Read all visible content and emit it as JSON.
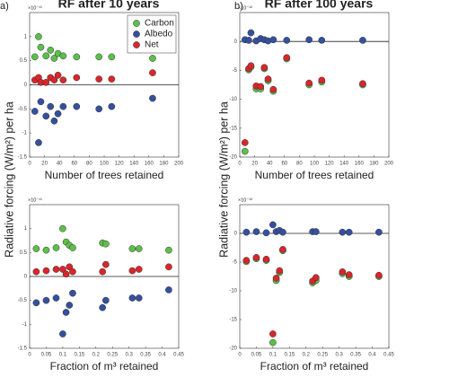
{
  "chart_data": [
    {
      "type": "scatter",
      "panel": "a)",
      "title": "RF  after 10 years",
      "exponent": "×10⁻¹¹",
      "ylabel": "Radiative forcing (W/m²) per ha",
      "xlabel": "Number of trees retained",
      "legend": "upper right",
      "x": [
        7,
        12,
        15,
        22,
        28,
        33,
        38,
        45,
        63,
        93,
        110,
        165
      ],
      "series": [
        {
          "name": "Carbon",
          "color": "#5cbf4a",
          "values": [
            0.58,
            1.0,
            0.78,
            0.6,
            0.72,
            0.55,
            0.65,
            0.6,
            0.58,
            0.58,
            0.58,
            0.55
          ]
        },
        {
          "name": "Albedo",
          "color": "#34509e",
          "values": [
            -0.55,
            -1.2,
            -0.35,
            -0.65,
            -0.45,
            -0.75,
            -0.6,
            -0.45,
            -0.45,
            -0.5,
            -0.45,
            -0.28
          ]
        },
        {
          "name": "Net",
          "color": "#d8262b",
          "values": [
            0.1,
            0.15,
            0.05,
            0.05,
            0.15,
            0.1,
            0.2,
            0.1,
            0.15,
            0.12,
            0.12,
            0.25
          ]
        }
      ],
      "xlim": [
        0,
        200
      ],
      "xticks": [
        0,
        20,
        40,
        60,
        80,
        100,
        120,
        140,
        160,
        180,
        200
      ],
      "ylim": [
        -1.5,
        1.5
      ],
      "yticks": [
        -1.5,
        -1,
        -0.5,
        0,
        0.5,
        1
      ],
      "hline": 0
    },
    {
      "type": "scatter",
      "panel": "b)",
      "title": "RF  after 100 years",
      "exponent": "×10⁻¹²",
      "ylabel": "Radiative forcing (W/m²) per ha",
      "xlabel": "Number of trees retained",
      "x": [
        7,
        12,
        15,
        22,
        28,
        33,
        38,
        45,
        63,
        93,
        110,
        165
      ],
      "series": [
        {
          "name": "Carbon",
          "color": "#5cbf4a",
          "values": [
            -19,
            -4.9,
            -4.4,
            -8.2,
            -8.2,
            -4.7,
            -6.8,
            -8.6,
            -3,
            -7.5,
            -7,
            -7.5
          ]
        },
        {
          "name": "Albedo",
          "color": "#34509e",
          "values": [
            0.3,
            0.2,
            1.5,
            0.1,
            0.5,
            0.3,
            0.1,
            0.3,
            0.2,
            0.3,
            0.2,
            0.2
          ]
        },
        {
          "name": "Net",
          "color": "#d8262b",
          "values": [
            -17.5,
            -4.7,
            -4.2,
            -7.7,
            -7.8,
            -4.5,
            -6.5,
            -8.3,
            -2.8,
            -7.2,
            -6.7,
            -7.3
          ]
        }
      ],
      "xlim": [
        0,
        200
      ],
      "xticks": [
        0,
        20,
        40,
        60,
        80,
        100,
        120,
        140,
        160,
        180,
        200
      ],
      "ylim": [
        -20,
        5
      ],
      "yticks": [
        -20,
        -15,
        -10,
        -5,
        0
      ],
      "hline": 0
    },
    {
      "type": "scatter",
      "exponent": "×10⁻¹¹",
      "xlabel": "Fraction of m³ retained",
      "x": [
        0.02,
        0.05,
        0.08,
        0.1,
        0.11,
        0.12,
        0.13,
        0.22,
        0.23,
        0.31,
        0.33,
        0.42
      ],
      "series": [
        {
          "name": "Carbon",
          "color": "#5cbf4a",
          "values": [
            0.58,
            0.55,
            0.6,
            1.0,
            0.72,
            0.65,
            0.6,
            0.7,
            0.68,
            0.58,
            0.58,
            0.55
          ]
        },
        {
          "name": "Albedo",
          "color": "#34509e",
          "values": [
            -0.55,
            -0.5,
            -0.45,
            -1.2,
            -0.75,
            -0.6,
            -0.35,
            -0.65,
            -0.5,
            -0.45,
            -0.45,
            -0.28
          ]
        },
        {
          "name": "Net",
          "color": "#d8262b",
          "values": [
            0.1,
            0.12,
            0.15,
            0.15,
            0.05,
            0.2,
            0.1,
            0.1,
            0.25,
            0.12,
            0.15,
            0.2
          ]
        }
      ],
      "xlim": [
        0,
        0.45
      ],
      "xticks": [
        0,
        0.05,
        0.1,
        0.15,
        0.2,
        0.25,
        0.3,
        0.35,
        0.4,
        0.45
      ],
      "ylim": [
        -1.5,
        1.5
      ],
      "yticks": [
        -1.5,
        -1,
        -0.5,
        0,
        0.5,
        1
      ],
      "hline": 0
    },
    {
      "type": "scatter",
      "exponent": "×10⁻¹²",
      "xlabel": "Fraction of m³ retained",
      "x": [
        0.02,
        0.05,
        0.08,
        0.1,
        0.11,
        0.12,
        0.13,
        0.22,
        0.23,
        0.31,
        0.33,
        0.42
      ],
      "series": [
        {
          "name": "Carbon",
          "color": "#5cbf4a",
          "values": [
            -4.9,
            -4.4,
            -4.7,
            -19,
            -8.2,
            -6.8,
            -3,
            -8.6,
            -8.2,
            -7,
            -7.5,
            -7.5
          ]
        },
        {
          "name": "Albedo",
          "color": "#34509e",
          "values": [
            0.2,
            0.3,
            0.1,
            1.5,
            0.3,
            0.5,
            0.2,
            0.3,
            0.3,
            0.2,
            0.2,
            0.2
          ]
        },
        {
          "name": "Net",
          "color": "#d8262b",
          "values": [
            -4.7,
            -4.2,
            -4.5,
            -17.5,
            -7.8,
            -6.5,
            -2.8,
            -8.3,
            -7.7,
            -6.7,
            -7.2,
            -7.3
          ]
        }
      ],
      "xlim": [
        0,
        0.45
      ],
      "xticks": [
        0,
        0.05,
        0.1,
        0.15,
        0.2,
        0.25,
        0.3,
        0.35,
        0.4,
        0.45
      ],
      "ylim": [
        -20,
        5
      ],
      "yticks": [
        -20,
        -15,
        -10,
        -5,
        0
      ],
      "hline": 0
    }
  ]
}
